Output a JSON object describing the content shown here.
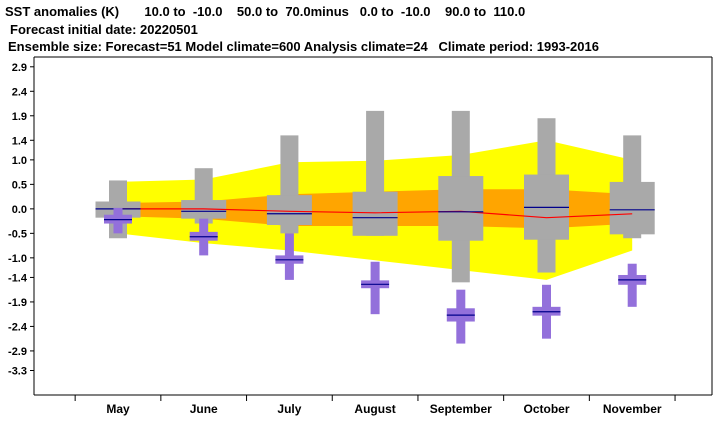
{
  "header": {
    "line1": "SST anomalies (K)       10.0 to  -10.0    50.0 to  70.0minus   0.0 to  -10.0    90.0 to  110.0",
    "line2": "Forecast initial date: 20220501",
    "line3": "Ensemble size: Forecast=51 Model climate=600 Analysis climate=24   Climate period: 1993-2016"
  },
  "colors": {
    "climate_outer": "#ffff00",
    "climate_inner": "#ffa500",
    "forecast_box": "#a9a9a9",
    "analysis_box": "#9370db",
    "climate_median_line": "#ff0000",
    "median_line": "#00008b"
  },
  "chart_data": {
    "type": "box",
    "title": "SST anomalies (K)",
    "ylim": [
      -3.8,
      3.1
    ],
    "yticks": [
      2.9,
      2.4,
      1.9,
      1.4,
      1.0,
      0.5,
      0.0,
      -0.5,
      -1.0,
      -1.4,
      -1.9,
      -2.4,
      -2.9,
      -3.3
    ],
    "ytick_labels": [
      "2.9",
      "2.4",
      "1.9",
      "1.4",
      "1.0",
      "0.5",
      "0.0",
      "-0.5",
      "-1.0",
      "-1.4",
      "-1.9",
      "-2.4",
      "-2.9",
      "-3.3"
    ],
    "categories": [
      "May",
      "June",
      "July",
      "August",
      "September",
      "October",
      "November"
    ],
    "climate_band_outer": {
      "upper": [
        0.55,
        0.6,
        0.95,
        0.98,
        1.1,
        1.4,
        1.0
      ],
      "lower": [
        -0.5,
        -0.7,
        -0.85,
        -1.05,
        -1.25,
        -1.45,
        -0.85
      ]
    },
    "climate_band_inner": {
      "upper": [
        0.12,
        0.15,
        0.3,
        0.35,
        0.4,
        0.4,
        0.3
      ],
      "lower": [
        -0.15,
        -0.2,
        -0.35,
        -0.35,
        -0.35,
        -0.4,
        -0.3
      ]
    },
    "climate_median": [
      0.0,
      0.0,
      -0.05,
      -0.08,
      -0.05,
      -0.18,
      -0.1
    ],
    "forecast": [
      {
        "min": -0.6,
        "p25": -0.18,
        "median": 0.0,
        "p75": 0.15,
        "max": 0.58
      },
      {
        "min": -0.3,
        "p25": -0.2,
        "median": -0.05,
        "p75": 0.18,
        "max": 0.83
      },
      {
        "min": -0.5,
        "p25": -0.33,
        "median": -0.1,
        "p75": 0.28,
        "max": 1.5
      },
      {
        "min": -0.55,
        "p25": -0.55,
        "median": -0.18,
        "p75": 0.35,
        "max": 2.0
      },
      {
        "min": -1.5,
        "p25": -0.65,
        "median": -0.06,
        "p75": 0.67,
        "max": 2.0
      },
      {
        "min": -1.3,
        "p25": -0.63,
        "median": 0.03,
        "p75": 0.7,
        "max": 1.85
      },
      {
        "min": -0.6,
        "p25": -0.52,
        "median": -0.02,
        "p75": 0.55,
        "max": 1.5
      }
    ],
    "analysis": [
      {
        "min": -0.5,
        "p25": -0.3,
        "median": -0.22,
        "p75": -0.12,
        "max": 0.02
      },
      {
        "min": -0.95,
        "p25": -0.65,
        "median": -0.57,
        "p75": -0.47,
        "max": -0.2
      },
      {
        "min": -1.45,
        "p25": -1.12,
        "median": -1.04,
        "p75": -0.95,
        "max": -0.5
      },
      {
        "min": -2.15,
        "p25": -1.62,
        "median": -1.54,
        "p75": -1.46,
        "max": -1.08
      },
      {
        "min": -2.75,
        "p25": -2.3,
        "median": -2.17,
        "p75": -2.03,
        "max": -1.65
      },
      {
        "min": -2.65,
        "p25": -2.18,
        "median": -2.1,
        "p75": -2.0,
        "max": -1.55
      },
      {
        "min": -2.0,
        "p25": -1.55,
        "median": -1.45,
        "p75": -1.35,
        "max": -1.12
      }
    ]
  }
}
